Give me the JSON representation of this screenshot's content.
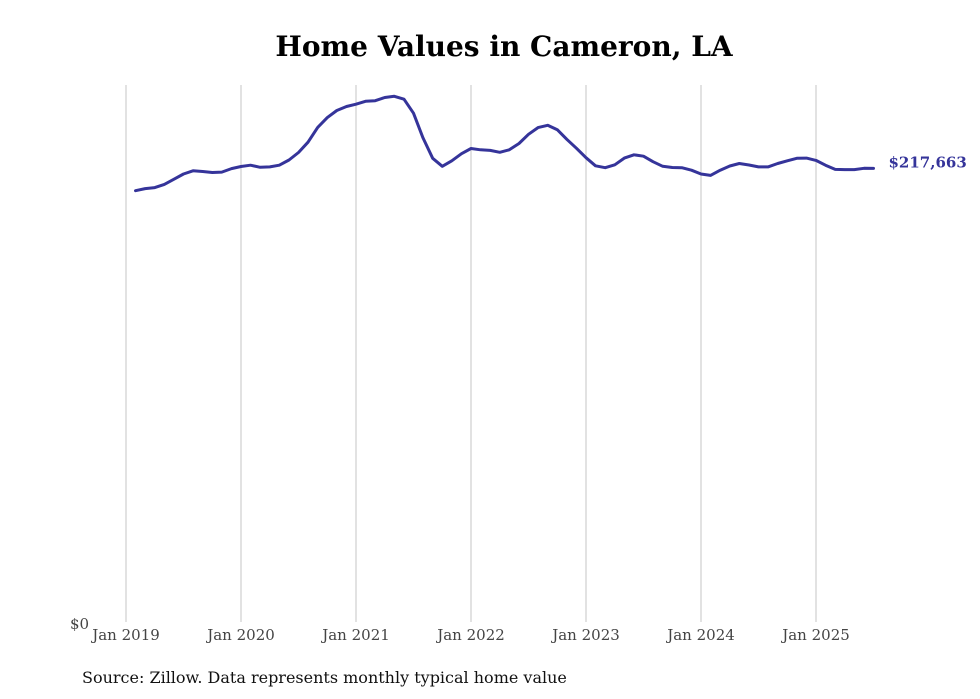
{
  "chart_data": {
    "type": "line",
    "title": "Home Values in Cameron, LA",
    "source": "Source: Zillow. Data represents monthly typical home value",
    "xlabel": "",
    "ylabel": "",
    "y_min_label": "$0",
    "ylim": [
      0,
      260000
    ],
    "x_ticks": [
      "Jan 2019",
      "Jan 2020",
      "Jan 2021",
      "Jan 2022",
      "Jan 2023",
      "Jan 2024",
      "Jan 2025"
    ],
    "grid": "vertical",
    "line_color": "#35349a",
    "end_label": "$217,663",
    "series": [
      {
        "name": "Home value",
        "x": [
          2019.083,
          2019.167,
          2019.25,
          2019.333,
          2019.417,
          2019.5,
          2019.583,
          2019.667,
          2019.75,
          2019.833,
          2019.917,
          2020.0,
          2020.083,
          2020.167,
          2020.25,
          2020.333,
          2020.417,
          2020.5,
          2020.583,
          2020.667,
          2020.75,
          2020.833,
          2020.917,
          2021.0,
          2021.083,
          2021.167,
          2021.25,
          2021.333,
          2021.417,
          2021.5,
          2021.583,
          2021.667,
          2021.75,
          2021.833,
          2021.917,
          2022.0,
          2022.083,
          2022.167,
          2022.25,
          2022.333,
          2022.417,
          2022.5,
          2022.583,
          2022.667,
          2022.75,
          2022.833,
          2022.917,
          2023.0,
          2023.083,
          2023.167,
          2023.25,
          2023.333,
          2023.417,
          2023.5,
          2023.583,
          2023.667,
          2023.75,
          2023.833,
          2023.917,
          2024.0,
          2024.083,
          2024.167,
          2024.25,
          2024.333,
          2024.417,
          2024.5,
          2024.583,
          2024.667,
          2024.75,
          2024.833,
          2024.917,
          2025.0,
          2025.083,
          2025.167,
          2025.25,
          2025.333,
          2025.417,
          2025.5
        ],
        "values": [
          207000,
          208000,
          208500,
          210000,
          212500,
          215000,
          216500,
          216200,
          215700,
          215900,
          217600,
          218600,
          219200,
          218200,
          218400,
          219200,
          221700,
          225300,
          230200,
          237300,
          242000,
          245400,
          247300,
          248400,
          249800,
          250100,
          251600,
          252200,
          250800,
          244100,
          232300,
          222500,
          218700,
          221300,
          224700,
          227200,
          226600,
          226300,
          225400,
          226600,
          229600,
          234000,
          237200,
          238300,
          236200,
          231600,
          227300,
          222800,
          218900,
          218000,
          219400,
          222600,
          224200,
          223500,
          220900,
          218700,
          218100,
          218000,
          216800,
          215000,
          214300,
          216800,
          218800,
          220000,
          219300,
          218400,
          218400,
          220000,
          221300,
          222500,
          222600,
          221500,
          219200,
          217200,
          217100,
          217100,
          217700,
          217663
        ]
      }
    ]
  }
}
